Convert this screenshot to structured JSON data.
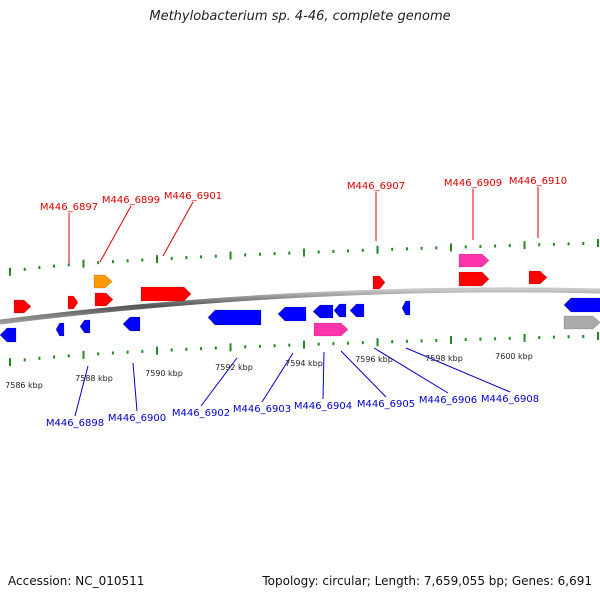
{
  "title": "Methylobacterium sp. 4-46, complete genome",
  "footer": {
    "accession": "Accession: NC_010511",
    "summary": "Topology: circular; Length: 7,659,055 bp; Genes: 6,691"
  },
  "colors": {
    "forward_gene": "#ff0000",
    "reverse_gene": "#0000ff",
    "rna": "#ff33aa",
    "orange_gene": "#ff9900",
    "grey_gene": "#aaaaaa",
    "tick_green": "#228822",
    "top_label": "#dd0000",
    "bottom_label": "#0000cc"
  },
  "scale_ticks": [
    "7586 kbp",
    "7588 kbp",
    "7590 kbp",
    "7592 kbp",
    "7594 kbp",
    "7596 kbp",
    "7598 kbp",
    "7600 kbp"
  ],
  "top_labels": [
    "M446_6897",
    "M446_6899",
    "M446_6901",
    "M446_6907",
    "M446_6909",
    "M446_6910"
  ],
  "bottom_labels": [
    "M446_6898",
    "M446_6900",
    "M446_6902",
    "M446_6903",
    "M446_6904",
    "M446_6905",
    "M446_6906",
    "M446_6908"
  ]
}
